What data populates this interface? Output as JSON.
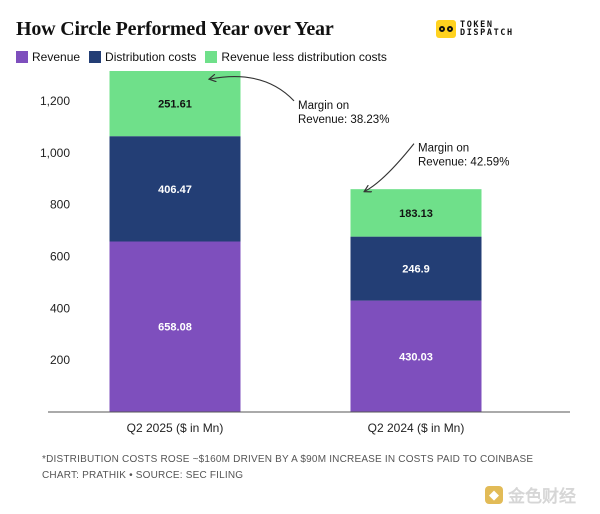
{
  "brand": {
    "line1": "TOKEN",
    "line2": "DISPATCH",
    "accent": "#ffd21f"
  },
  "footnote": {
    "line1": "*DISTRIBUTION COSTS ROSE ~$160M DRIVEN BY A $90M INCREASE IN COSTS PAID TO COINBASE",
    "line2": "CHART: PRATHIK • SOURCE: SEC FILING"
  },
  "watermark": {
    "text": "金色财经",
    "icon": "golden-square-icon"
  },
  "chart_data": {
    "type": "bar",
    "stacked": true,
    "title": "How Circle Performed Year over Year",
    "xlabel": "",
    "ylabel": "",
    "categories": [
      "Q2 2025 ($ in Mn)",
      "Q2 2024 ($ in Mn)"
    ],
    "series": [
      {
        "name": "Revenue",
        "color": "#7e4fbd",
        "values": [
          658.08,
          430.03
        ]
      },
      {
        "name": "Distribution costs",
        "color": "#233e75",
        "values": [
          406.47,
          246.9
        ]
      },
      {
        "name": "Revenue less distribution costs",
        "color": "#6fe08a",
        "values": [
          251.61,
          183.13
        ]
      }
    ],
    "y_ticks": [
      200,
      400,
      600,
      800,
      1000,
      1200
    ],
    "y_tick_labels": [
      "200",
      "400",
      "600",
      "800",
      "1,000",
      "1,200"
    ],
    "ylim": [
      0,
      1320
    ],
    "grid": false,
    "legend_position": "top-left",
    "annotations": [
      {
        "line1": "Margin on",
        "line2": "Revenue: 38.23%",
        "category": "Q2 2025 ($ in Mn)"
      },
      {
        "line1": "Margin on",
        "line2": "Revenue: 42.59%",
        "category": "Q2 2024 ($ in Mn)"
      }
    ]
  }
}
